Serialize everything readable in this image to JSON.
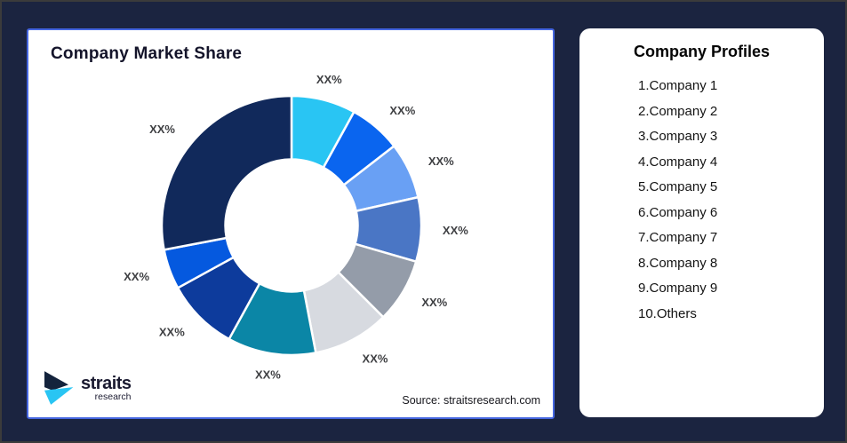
{
  "window": {
    "background_color": "#1B2440",
    "frame_border_color": "#3B3B3B"
  },
  "left_panel": {
    "title": "Company Market Share",
    "source_note": "Source: straitsresearch.com",
    "border_accent_color": "#4566E0",
    "logo": {
      "brand": "straits",
      "brand_sub": "research",
      "mark_navy": "#14233C",
      "mark_cyan": "#29C5F3"
    }
  },
  "right_panel": {
    "title": "Company Profiles",
    "items": [
      "1.Company 1",
      "2.Company 2",
      "3.Company 3",
      "4.Company 4",
      "5.Company 5",
      "6.Company 6",
      "7.Company 7",
      "8.Company 8",
      "9.Company 9",
      "10.Others"
    ]
  },
  "chart_data": {
    "type": "pie",
    "subtype": "donut",
    "title": "Company Market Share",
    "labels": [
      "Company 1",
      "Company 2",
      "Company 3",
      "Company 4",
      "Company 5",
      "Company 6",
      "Company 7",
      "Company 8",
      "Company 9",
      "Others"
    ],
    "value_labels": [
      "XX%",
      "XX%",
      "XX%",
      "XX%",
      "XX%",
      "XX%",
      "XX%",
      "XX%",
      "XX%",
      "XX%"
    ],
    "values": [
      8,
      6.5,
      7,
      8,
      8,
      9.5,
      11,
      9,
      5,
      28
    ],
    "colors": [
      "#29C5F3",
      "#0A65EF",
      "#69A0F4",
      "#4A76C5",
      "#949CA9",
      "#D7DAE0",
      "#0B86A6",
      "#0D3B9C",
      "#0559DF",
      "#11295B"
    ],
    "start_angle_deg": 0,
    "direction": "clockwise",
    "inner_radius_ratio": 0.51,
    "outer_radius_px": 146,
    "label_radius_px": 170,
    "label_color": "#3F4043",
    "gap_color": "#FFFFFF",
    "legend_position": "none"
  }
}
